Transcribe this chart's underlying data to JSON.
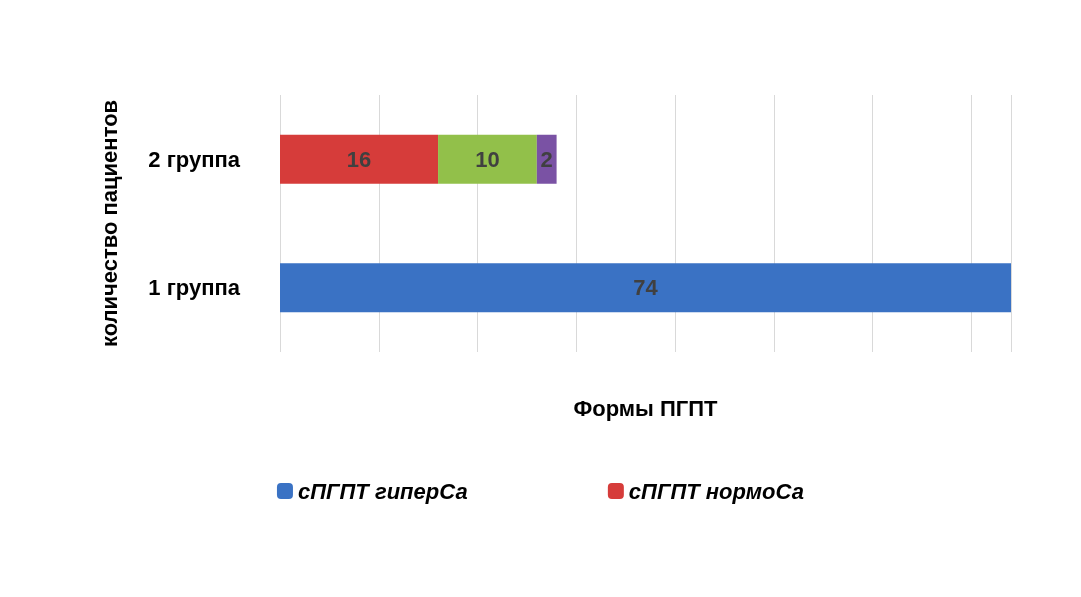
{
  "chart_data": {
    "type": "bar",
    "orientation": "horizontal",
    "stacked": true,
    "xlabel": "Формы ПГПТ",
    "ylabel": "количество пациентов",
    "categories": [
      "2 группа",
      "1 группа"
    ],
    "series": [
      {
        "name": "сПГПТ гиперСа",
        "color": "#3a72c4",
        "values": [
          null,
          74
        ]
      },
      {
        "name": "сПГПТ нормоСа",
        "color": "#d63c3a",
        "values": [
          16,
          null
        ]
      },
      {
        "color": "#92c04a",
        "values": [
          10,
          null
        ]
      },
      {
        "color": "#7a52a4",
        "values": [
          2,
          null
        ]
      }
    ],
    "data_labels": true,
    "legend": "bottom",
    "grid": "x",
    "tick_labels": "y"
  }
}
